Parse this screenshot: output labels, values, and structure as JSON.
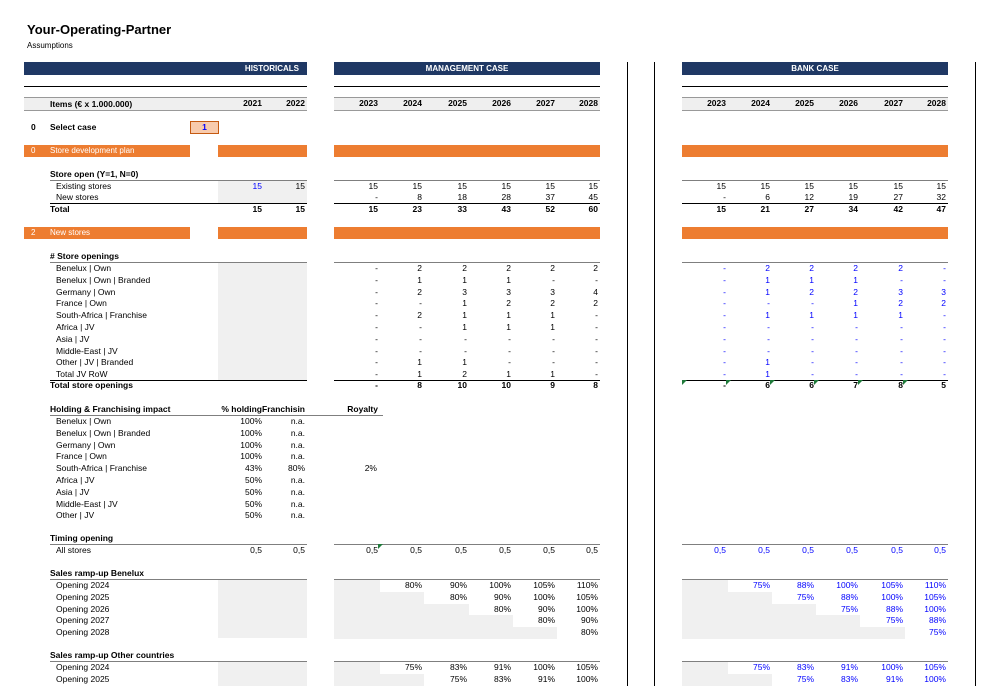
{
  "title": "Your-Operating-Partner",
  "subtitle": "Assumptions",
  "section_headers": {
    "historicals": "HISTORICALS",
    "management": "MANAGEMENT CASE",
    "bank": "BANK CASE"
  },
  "items_label": "Items (€ x 1.000.000)",
  "hist_years": [
    "2021",
    "2022"
  ],
  "proj_years": [
    "2023",
    "2024",
    "2025",
    "2026",
    "2027",
    "2028"
  ],
  "select_case": {
    "num": "0",
    "label": "Select case",
    "value": "1"
  },
  "sec0": {
    "num": "0",
    "label": "Store development plan"
  },
  "sec2": {
    "num": "2",
    "label": "New stores"
  },
  "store_open": {
    "title": "Store open (Y=1, N=0)",
    "existing": {
      "label": "Existing stores",
      "hist": [
        "15",
        "15"
      ],
      "mgmt": [
        "15",
        "15",
        "15",
        "15",
        "15",
        "15"
      ],
      "bank": [
        "15",
        "15",
        "15",
        "15",
        "15",
        "15"
      ]
    },
    "new": {
      "label": "New stores",
      "hist": [
        "",
        ""
      ],
      "mgmt": [
        "-",
        "8",
        "18",
        "28",
        "37",
        "45"
      ],
      "bank": [
        "-",
        "6",
        "12",
        "19",
        "27",
        "32"
      ]
    },
    "total": {
      "label": "Total",
      "hist": [
        "15",
        "15"
      ],
      "mgmt": [
        "15",
        "23",
        "33",
        "43",
        "52",
        "60"
      ],
      "bank": [
        "15",
        "21",
        "27",
        "34",
        "42",
        "47"
      ]
    }
  },
  "store_openings": {
    "title": "# Store openings",
    "rows": [
      {
        "label": "Benelux | Own",
        "mgmt": [
          "-",
          "2",
          "2",
          "2",
          "2",
          "2"
        ],
        "bank": [
          "-",
          "2",
          "2",
          "2",
          "2",
          "-"
        ]
      },
      {
        "label": "Benelux | Own | Branded",
        "mgmt": [
          "-",
          "1",
          "1",
          "1",
          "-",
          "-"
        ],
        "bank": [
          "-",
          "1",
          "1",
          "1",
          "-",
          "-"
        ]
      },
      {
        "label": "Germany | Own",
        "mgmt": [
          "-",
          "2",
          "3",
          "3",
          "3",
          "4"
        ],
        "bank": [
          "-",
          "1",
          "2",
          "2",
          "3",
          "3"
        ]
      },
      {
        "label": "France | Own",
        "mgmt": [
          "-",
          "-",
          "1",
          "2",
          "2",
          "2"
        ],
        "bank": [
          "-",
          "-",
          "-",
          "1",
          "2",
          "2"
        ]
      },
      {
        "label": "South-Africa | Franchise",
        "mgmt": [
          "-",
          "2",
          "1",
          "1",
          "1",
          "-"
        ],
        "bank": [
          "-",
          "1",
          "1",
          "1",
          "1",
          "-"
        ]
      },
      {
        "label": "Africa | JV",
        "mgmt": [
          "-",
          "-",
          "1",
          "1",
          "1",
          "-"
        ],
        "bank": [
          "-",
          "-",
          "-",
          "-",
          "-",
          "-"
        ]
      },
      {
        "label": "Asia | JV",
        "mgmt": [
          "-",
          "-",
          "-",
          "-",
          "-",
          "-"
        ],
        "bank": [
          "-",
          "-",
          "-",
          "-",
          "-",
          "-"
        ]
      },
      {
        "label": "Middle-East | JV",
        "mgmt": [
          "-",
          "-",
          "-",
          "-",
          "-",
          "-"
        ],
        "bank": [
          "-",
          "-",
          "-",
          "-",
          "-",
          "-"
        ]
      },
      {
        "label": "Other | JV | Branded",
        "mgmt": [
          "-",
          "1",
          "1",
          "-",
          "-",
          "-"
        ],
        "bank": [
          "-",
          "1",
          "-",
          "-",
          "-",
          "-"
        ]
      },
      {
        "label": "Total JV RoW",
        "mgmt": [
          "-",
          "1",
          "2",
          "1",
          "1",
          "-"
        ],
        "bank": [
          "-",
          "1",
          "-",
          "-",
          "-",
          "-"
        ]
      }
    ],
    "total": {
      "label": "Total store openings",
      "mgmt": [
        "-",
        "8",
        "10",
        "10",
        "9",
        "8"
      ],
      "bank": [
        "-",
        "6",
        "6",
        "7",
        "8",
        "5"
      ]
    }
  },
  "holding": {
    "title": "Holding & Franchising impact",
    "col_holding": "% holding",
    "col_franchise": "Franchisin",
    "col_royalty": "Royalty",
    "rows": [
      {
        "label": "Benelux | Own",
        "holding": "100%",
        "franchise": "n.a.",
        "royalty": ""
      },
      {
        "label": "Benelux | Own | Branded",
        "holding": "100%",
        "franchise": "n.a.",
        "royalty": ""
      },
      {
        "label": "Germany | Own",
        "holding": "100%",
        "franchise": "n.a.",
        "royalty": ""
      },
      {
        "label": "France | Own",
        "holding": "100%",
        "franchise": "n.a.",
        "royalty": ""
      },
      {
        "label": "South-Africa | Franchise",
        "holding": "43%",
        "franchise": "80%",
        "royalty": "2%"
      },
      {
        "label": "Africa | JV",
        "holding": "50%",
        "franchise": "n.a.",
        "royalty": ""
      },
      {
        "label": "Asia | JV",
        "holding": "50%",
        "franchise": "n.a.",
        "royalty": ""
      },
      {
        "label": "Middle-East | JV",
        "holding": "50%",
        "franchise": "n.a.",
        "royalty": ""
      },
      {
        "label": "Other | JV",
        "holding": "50%",
        "franchise": "n.a.",
        "royalty": ""
      }
    ]
  },
  "timing": {
    "title": "Timing opening",
    "row": {
      "label": "All stores",
      "hist": [
        "0,5",
        "0,5"
      ],
      "mgmt": [
        "0,5",
        "0,5",
        "0,5",
        "0,5",
        "0,5",
        "0,5"
      ],
      "bank": [
        "0,5",
        "0,5",
        "0,5",
        "0,5",
        "0,5",
        "0,5"
      ]
    }
  },
  "rampup_benelux": {
    "title": "Sales ramp-up Benelux",
    "rows": [
      {
        "label": "Opening 2024",
        "mgmt": [
          "",
          "80%",
          "90%",
          "100%",
          "105%",
          "110%"
        ],
        "bank": [
          "",
          "75%",
          "88%",
          "100%",
          "105%",
          "110%"
        ]
      },
      {
        "label": "Opening 2025",
        "mgmt": [
          "",
          "",
          "80%",
          "90%",
          "100%",
          "105%"
        ],
        "bank": [
          "",
          "",
          "75%",
          "88%",
          "100%",
          "105%"
        ]
      },
      {
        "label": "Opening 2026",
        "mgmt": [
          "",
          "",
          "",
          "80%",
          "90%",
          "100%"
        ],
        "bank": [
          "",
          "",
          "",
          "75%",
          "88%",
          "100%"
        ]
      },
      {
        "label": "Opening 2027",
        "mgmt": [
          "",
          "",
          "",
          "",
          "80%",
          "90%"
        ],
        "bank": [
          "",
          "",
          "",
          "",
          "75%",
          "88%"
        ]
      },
      {
        "label": "Opening 2028",
        "mgmt": [
          "",
          "",
          "",
          "",
          "",
          "80%"
        ],
        "bank": [
          "",
          "",
          "",
          "",
          "",
          "75%"
        ]
      }
    ]
  },
  "rampup_other": {
    "title": "Sales ramp-up Other countries",
    "rows": [
      {
        "label": "Opening 2024",
        "mgmt": [
          "",
          "75%",
          "83%",
          "91%",
          "100%",
          "105%"
        ],
        "bank": [
          "",
          "75%",
          "83%",
          "91%",
          "100%",
          "105%"
        ]
      },
      {
        "label": "Opening 2025",
        "mgmt": [
          "",
          "",
          "75%",
          "83%",
          "91%",
          "100%"
        ],
        "bank": [
          "",
          "",
          "75%",
          "83%",
          "91%",
          "100%"
        ]
      }
    ]
  },
  "colors": {
    "navy": "#1f3864",
    "orange": "#ed7d31",
    "input_blue": "#0000ff",
    "select_fill": "#f8cbad"
  }
}
